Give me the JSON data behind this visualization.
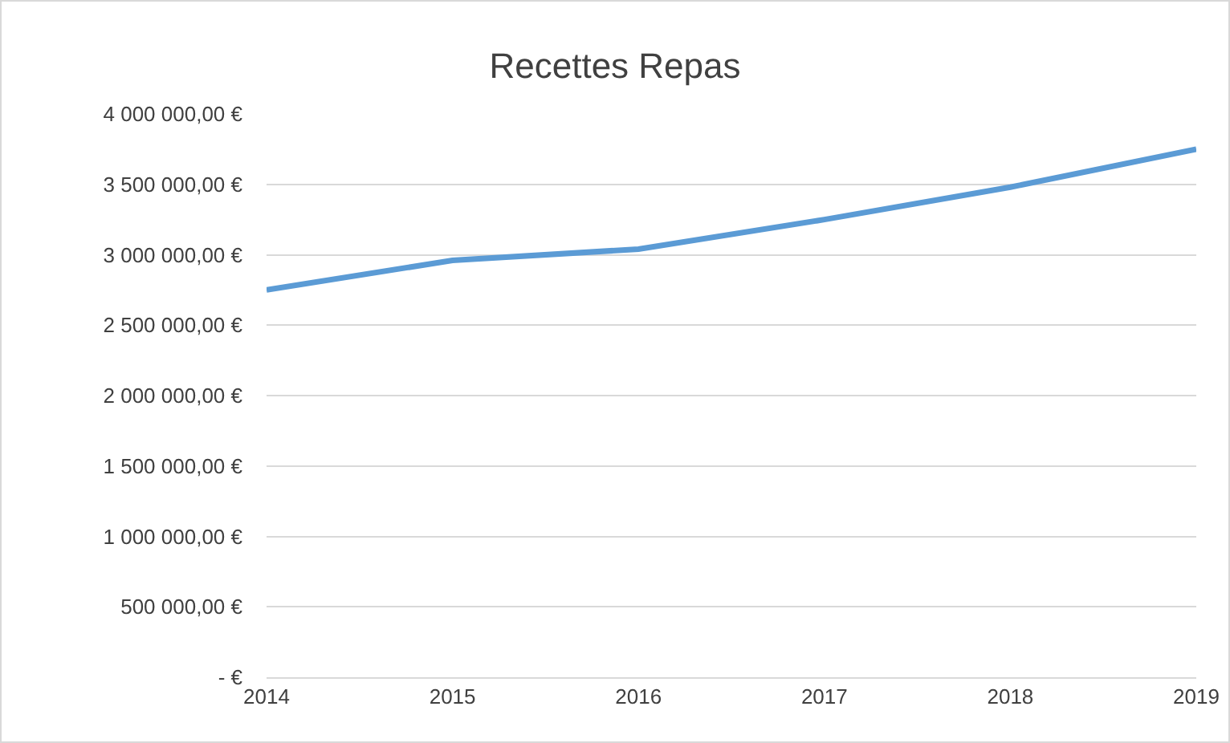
{
  "chart_data": {
    "type": "line",
    "title": "Recettes Repas",
    "categories": [
      "2014",
      "2015",
      "2016",
      "2017",
      "2018",
      "2019"
    ],
    "series": [
      {
        "color": "#5b9bd5",
        "values": [
          2750000,
          2960000,
          3040000,
          3250000,
          3480000,
          3750000
        ]
      }
    ],
    "ylim": [
      0,
      4000000
    ],
    "yticks": [
      {
        "value": 0,
        "label": "- €"
      },
      {
        "value": 500000,
        "label": "500 000,00 €"
      },
      {
        "value": 1000000,
        "label": "1 000 000,00 €"
      },
      {
        "value": 1500000,
        "label": "1 500 000,00 €"
      },
      {
        "value": 2000000,
        "label": "2 000 000,00 €"
      },
      {
        "value": 2500000,
        "label": "2 500 000,00 €"
      },
      {
        "value": 3000000,
        "label": "3 000 000,00 €"
      },
      {
        "value": 3500000,
        "label": "3 500 000,00 €"
      },
      {
        "value": 4000000,
        "label": "4 000 000,00 €"
      }
    ],
    "grid": "y",
    "legend": false,
    "marker": "none",
    "line_style": "solid"
  }
}
